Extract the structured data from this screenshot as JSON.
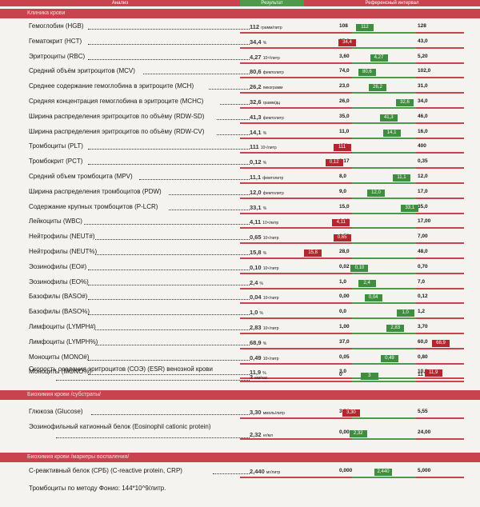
{
  "header": {
    "col_analysis": "Анализ",
    "col_result": "Результат",
    "col_reference": "Референсный интервал"
  },
  "sections": {
    "clinical": "Клиника крови",
    "biochem": "Биохимия крови /субстраты/",
    "markers": "Биохимия крови /маркеры воспаления/"
  },
  "rows": [
    {
      "name": "Гемоглобин (HGB)",
      "result": "112",
      "unit": "грамм/литр",
      "flag": "normal",
      "low": "108",
      "high": "128",
      "val": "112"
    },
    {
      "name": "Гематокрит (HCT)",
      "result": "34,4",
      "unit": "%",
      "flag": "low",
      "low": "35,0",
      "high": "43,0",
      "val": "34,4"
    },
    {
      "name": "Эритроциты (RBC)",
      "result": "4,27",
      "unit": "10¹²/литр",
      "flag": "normal",
      "low": "3,60",
      "high": "5,20",
      "val": "4,27"
    },
    {
      "name": "Средний объём эритроцитов (MCV)",
      "result": "80,6",
      "unit": "фемтолитр",
      "flag": "normal",
      "low": "74,0",
      "high": "102,0",
      "val": "80,6"
    },
    {
      "name": "Среднее содержание гемоглобина в эритроците (MCH)",
      "result": "26,2",
      "unit": "пикограмм",
      "flag": "normal",
      "low": "23,0",
      "high": "31,0",
      "val": "26,2"
    },
    {
      "name": "Средняя концентрация гемоглобина в эритроците (MCHC)",
      "result": "32,6",
      "unit": "грамм/дц",
      "flag": "normal",
      "low": "26,0",
      "high": "34,0",
      "val": "32,6"
    },
    {
      "name": "Ширина распределения эритроцитов по объёму (RDW-SD)",
      "result": "41,3",
      "unit": "фемтолитр",
      "flag": "normal",
      "low": "35,0",
      "high": "46,0",
      "val": "41,3"
    },
    {
      "name": "Ширина распределения эритроцитов по объёму (RDW-CV)",
      "result": "14,1",
      "unit": "%",
      "flag": "normal",
      "low": "11,0",
      "high": "16,0",
      "val": "14,1"
    },
    {
      "name": "Тромбоциты (PLT)",
      "result": "111",
      "unit": "10⁹/литр",
      "flag": "low",
      "low": "150",
      "high": "400",
      "val": "111"
    },
    {
      "name": "Тромбокрит (PCT)",
      "result": "0,12",
      "unit": "%",
      "flag": "low",
      "low": "0,17",
      "high": "0,35",
      "val": "0,12"
    },
    {
      "name": "Средний объем тромбоцита (MPV)",
      "result": "11,1",
      "unit": "фемтолитр",
      "flag": "normal",
      "low": "8,0",
      "high": "12,0",
      "val": "11,1"
    },
    {
      "name": "Ширина распределения тромбоцитов (PDW)",
      "result": "12,0",
      "unit": "фемтолитр",
      "flag": "normal",
      "low": "9,0",
      "high": "17,0",
      "val": "12,0"
    },
    {
      "name": "Содержание крупных тромбоцитов (P-LCR)",
      "result": "33,1",
      "unit": "%",
      "flag": "normal",
      "low": "15,0",
      "high": "35,0",
      "val": "33,1"
    },
    {
      "name": "Лейкоциты (WBC)",
      "result": "4,11",
      "unit": "10⁹/литр",
      "flag": "low",
      "low": "6,00",
      "high": "17,00",
      "val": "4,11"
    },
    {
      "name": "Нейтрофилы (NEUT#)",
      "result": "0,65",
      "unit": "10⁹/литр",
      "flag": "low",
      "low": "1,50",
      "high": "7,00",
      "val": "0,65"
    },
    {
      "name": "Нейтрофилы (NEUT%)",
      "result": "15,8",
      "unit": "%",
      "flag": "low",
      "low": "28,0",
      "high": "48,0",
      "val": "15,8"
    },
    {
      "name": "Эозинофилы (EO#)",
      "result": "0,10",
      "unit": "10⁹/литр",
      "flag": "normal",
      "low": "0,02",
      "high": "0,70",
      "val": "0,10"
    },
    {
      "name": "Эозинофилы (EO%)",
      "result": "2,4",
      "unit": "%",
      "flag": "normal",
      "low": "1,0",
      "high": "7,0",
      "val": "2,4"
    },
    {
      "name": "Базофилы (BASO#)",
      "result": "0,04",
      "unit": "10⁹/литр",
      "flag": "normal",
      "low": "0,00",
      "high": "0,12",
      "val": "0,04"
    },
    {
      "name": "Базофилы (BASO%)",
      "result": "1,0",
      "unit": "%",
      "flag": "normal",
      "low": "0,0",
      "high": "1,2",
      "val": "1,0"
    },
    {
      "name": "Лимфоциты (LYMPH#)",
      "result": "2,83",
      "unit": "10⁹/литр",
      "flag": "normal",
      "low": "1,00",
      "high": "3,70",
      "val": "2,83"
    },
    {
      "name": "Лимфоциты (LYMPH%)",
      "result": "68,9",
      "unit": "%",
      "flag": "high",
      "low": "37,0",
      "high": "60,0",
      "val": "68,9"
    },
    {
      "name": "Моноциты (MONO#)",
      "result": "0,49",
      "unit": "10⁹/литр",
      "flag": "normal",
      "low": "0,05",
      "high": "0,80",
      "val": "0,49"
    },
    {
      "name": "Моноциты (MONO%)",
      "result": "11,9",
      "unit": "%",
      "flag": "high",
      "low": "3,0",
      "high": "10,0",
      "val": "11,9"
    }
  ],
  "esr": {
    "name": "Скорость оседания эритроцитов (СОЭ) (ESR) венозной крови",
    "result": "3",
    "unit": "мм/час",
    "low": "0",
    "high": "11",
    "val": "3"
  },
  "glucose": {
    "name": "Глюкоза (Glucose)",
    "result": "3,30",
    "unit": "ммоль/литр",
    "low": "3,33",
    "high": "5,55",
    "val": "3,30"
  },
  "ecp": {
    "name": "Эозинофильный катионный белок (Eosinophil cationic protein)",
    "result": "2,32",
    "unit": "нг/мл",
    "low": "0,00",
    "high": "24,00",
    "val": "2,32"
  },
  "crp": {
    "name": "С-реактивный белок (СРБ) (C-reactive protein, CRP)",
    "result": "2,440",
    "unit": "мг/литр",
    "low": "0,000",
    "high": "5,000",
    "val": "2,440"
  },
  "footer": "Тромбоциты по методу Фонио: 144*10^9/литр."
}
